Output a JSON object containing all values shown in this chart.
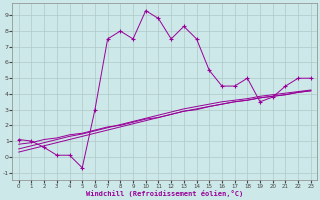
{
  "xlabel": "Windchill (Refroidissement éolien,°C)",
  "background_color": "#cce8e8",
  "grid_color": "#b0c8c8",
  "line_color": "#990099",
  "x_values": [
    0,
    1,
    2,
    3,
    4,
    5,
    6,
    7,
    8,
    9,
    10,
    11,
    12,
    13,
    14,
    15,
    16,
    17,
    18,
    19,
    20,
    21,
    22,
    23
  ],
  "main_line": [
    1.1,
    1.0,
    0.6,
    0.1,
    0.1,
    -0.7,
    3.0,
    7.5,
    8.0,
    7.5,
    9.3,
    8.8,
    7.5,
    8.3,
    7.5,
    5.5,
    4.5,
    4.5,
    5.0,
    3.5,
    3.8,
    4.5,
    5.0,
    5.0
  ],
  "reg_line1": [
    0.8,
    0.9,
    1.1,
    1.2,
    1.4,
    1.5,
    1.7,
    1.9,
    2.0,
    2.2,
    2.4,
    2.5,
    2.7,
    2.9,
    3.0,
    3.2,
    3.35,
    3.5,
    3.6,
    3.75,
    3.85,
    3.95,
    4.1,
    4.2
  ],
  "reg_line2": [
    0.5,
    0.7,
    0.9,
    1.1,
    1.3,
    1.45,
    1.65,
    1.85,
    2.05,
    2.25,
    2.45,
    2.65,
    2.85,
    3.05,
    3.2,
    3.35,
    3.5,
    3.6,
    3.7,
    3.85,
    3.95,
    4.05,
    4.15,
    4.25
  ],
  "reg_line3": [
    0.3,
    0.5,
    0.7,
    0.9,
    1.1,
    1.3,
    1.5,
    1.7,
    1.9,
    2.1,
    2.3,
    2.5,
    2.7,
    2.9,
    3.05,
    3.2,
    3.35,
    3.5,
    3.6,
    3.75,
    3.85,
    3.95,
    4.1,
    4.2
  ],
  "ylim": [
    -1.5,
    9.8
  ],
  "xlim": [
    -0.5,
    23.5
  ],
  "yticks": [
    -1,
    0,
    1,
    2,
    3,
    4,
    5,
    6,
    7,
    8,
    9
  ],
  "xticks": [
    0,
    1,
    2,
    3,
    4,
    5,
    6,
    7,
    8,
    9,
    10,
    11,
    12,
    13,
    14,
    15,
    16,
    17,
    18,
    19,
    20,
    21,
    22,
    23
  ]
}
